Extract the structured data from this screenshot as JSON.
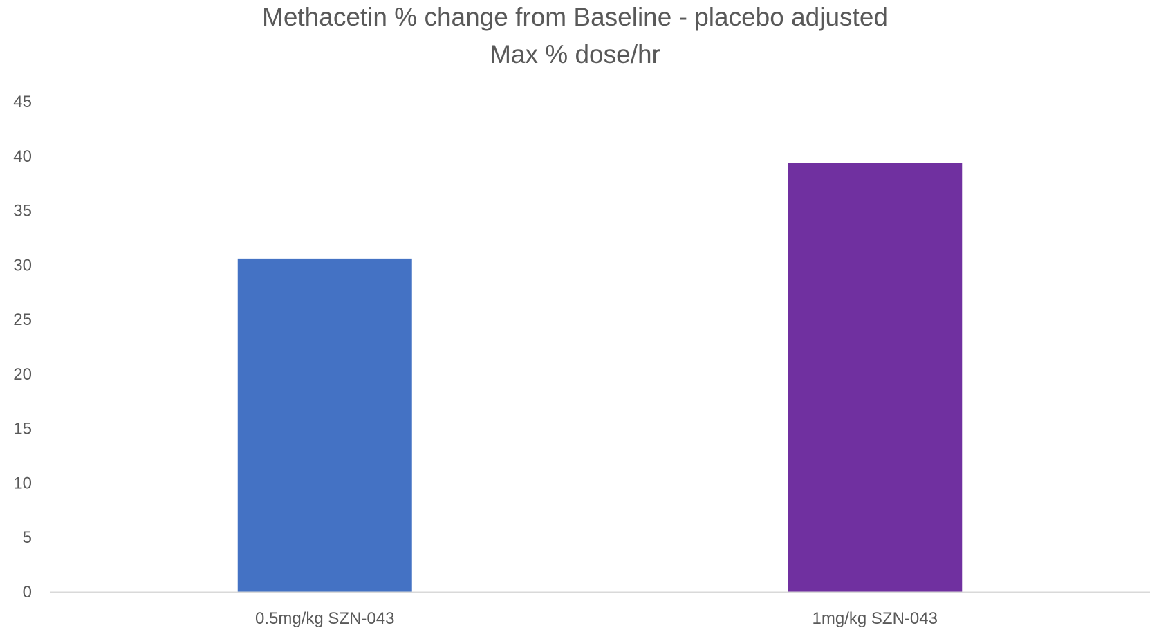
{
  "chart_data": {
    "type": "bar",
    "title_lines": [
      "Methacetin % change from Baseline - placebo adjusted",
      "Max % dose/hr"
    ],
    "categories": [
      "0.5mg/kg SZN-043",
      "1mg/kg SZN-043"
    ],
    "values": [
      30.6,
      39.4
    ],
    "colors": [
      "#4472C4",
      "#7030A0"
    ],
    "xlabel": "",
    "ylabel": "",
    "ylim": [
      0,
      45
    ],
    "yticks": [
      "0",
      "5",
      "10",
      "15",
      "20",
      "25",
      "30",
      "35",
      "40",
      "45"
    ],
    "grid": false,
    "legend": "none",
    "axis_color": "#D9D9D9",
    "text_color": "#595959"
  }
}
